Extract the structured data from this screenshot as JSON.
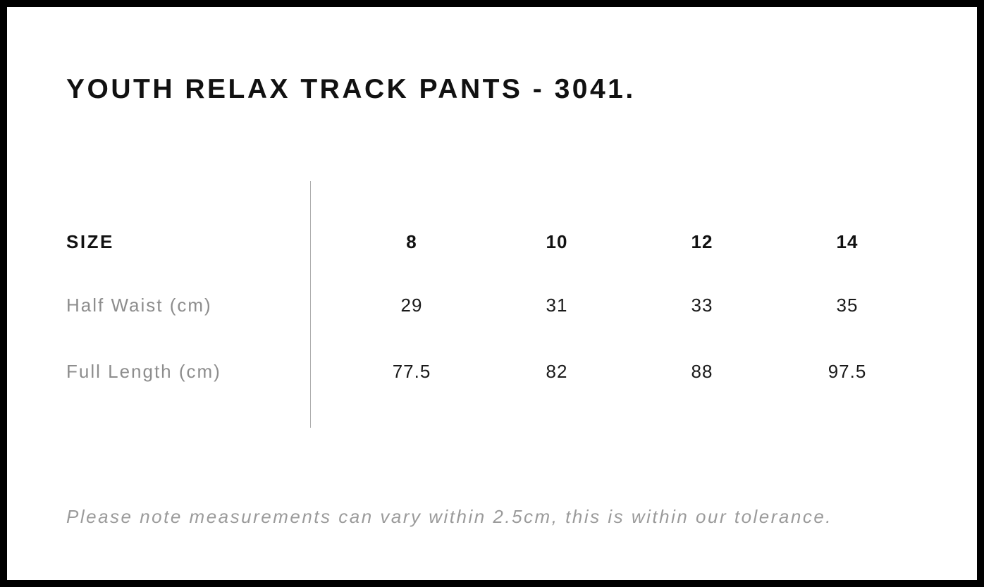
{
  "page": {
    "title": "YOUTH RELAX TRACK PANTS - 3041."
  },
  "size_chart": {
    "header_label": "SIZE",
    "sizes": [
      "8",
      "10",
      "12",
      "14"
    ],
    "rows": [
      {
        "label": "Half Waist (cm)",
        "values": [
          "29",
          "31",
          "33",
          "35"
        ]
      },
      {
        "label": "Full Length (cm)",
        "values": [
          "77.5",
          "82",
          "88",
          "97.5"
        ]
      }
    ]
  },
  "note": "Please note measurements can vary within 2.5cm, this is within our tolerance.",
  "colors": {
    "text_primary": "#111111",
    "text_label_gray": "#8d8d8d",
    "text_note_gray": "#9b9b9b",
    "divider_gray": "#aeaeae",
    "border_black": "#000000",
    "background": "#ffffff"
  }
}
